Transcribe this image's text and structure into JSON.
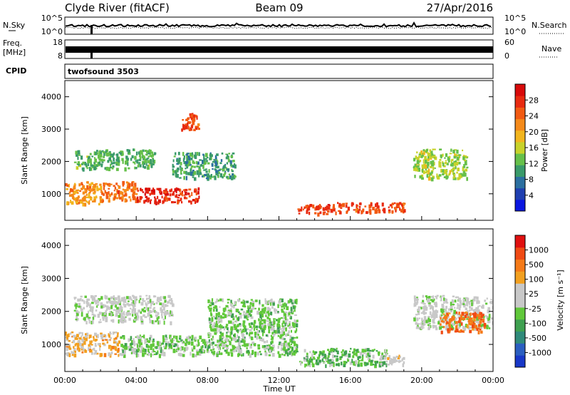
{
  "header": {
    "station": "Clyde River (fitACF)",
    "beam": "Beam 09",
    "date": "27/Apr/2016"
  },
  "top_panels": {
    "nsky_label": "N.Sky",
    "nsky_ticks": [
      "10^5",
      "10^0"
    ],
    "nsearch_label": "N.Search",
    "nsearch_ticks": [
      "10^5",
      "10^0"
    ],
    "freq_label": "Freq.",
    "freq_unit": "[MHz]",
    "freq_ticks": [
      "18",
      "8"
    ],
    "nave_label": "Nave",
    "nave_ticks": [
      "60",
      "0"
    ],
    "cpid_label": "CPID",
    "cpid_value": "twofsound 3503"
  },
  "x_axis": {
    "label": "Time UT",
    "ticks": [
      "00:00",
      "04:00",
      "08:00",
      "12:00",
      "16:00",
      "20:00",
      "00:00"
    ]
  },
  "y_axis": {
    "label": "Slant Range [km]",
    "ticks": [
      "4000",
      "3000",
      "2000",
      "1000"
    ]
  },
  "power_colorbar": {
    "label": "Power [dB]",
    "ticks": [
      "28",
      "24",
      "20",
      "16",
      "12",
      "8",
      "4"
    ],
    "colors": [
      "#0a16e0",
      "#1f3fb0",
      "#2b6fa0",
      "#3a9a6a",
      "#66c04a",
      "#c8d22a",
      "#f2b51e",
      "#f58a1a",
      "#f25a12",
      "#e82a10",
      "#d80a0a"
    ]
  },
  "velocity_colorbar": {
    "label": "Velocity [m s⁻¹]",
    "ticks": [
      "1000",
      "500",
      "100",
      "25",
      "-25",
      "-100",
      "-500",
      "-1000"
    ],
    "colors": [
      "#1838c8",
      "#2a5ec0",
      "#2f8a7a",
      "#3fa050",
      "#60c83a",
      "#c8c8c8",
      "#c8c8c8",
      "#f2a020",
      "#f57a18",
      "#f04a14",
      "#e01010"
    ]
  },
  "chart_data": [
    {
      "type": "heatmap",
      "title": "Power",
      "xlabel": "Time UT",
      "ylabel": "Slant Range [km]",
      "xlim": [
        "00:00",
        "24:00"
      ],
      "ylim": [
        180,
        4500
      ],
      "colorbar_label": "Power [dB]",
      "color_range": [
        0,
        30
      ],
      "regions": [
        {
          "t": [
            0.0,
            2.0
          ],
          "r": [
            700,
            1400
          ],
          "value": 20
        },
        {
          "t": [
            2.0,
            4.0
          ],
          "r": [
            800,
            1400
          ],
          "value": 22
        },
        {
          "t": [
            4.0,
            7.5
          ],
          "r": [
            750,
            1200
          ],
          "value": 26
        },
        {
          "t": [
            13.0,
            15.0
          ],
          "r": [
            400,
            700
          ],
          "value": 25
        },
        {
          "t": [
            15.0,
            19.0
          ],
          "r": [
            450,
            750
          ],
          "value": 24
        },
        {
          "t": [
            6.5,
            7.5
          ],
          "r": [
            3000,
            3500
          ],
          "value": 24
        },
        {
          "t": [
            0.5,
            5.0
          ],
          "r": [
            1800,
            2400
          ],
          "value": 11
        },
        {
          "t": [
            6.0,
            9.5
          ],
          "r": [
            1500,
            2300
          ],
          "value": 10
        },
        {
          "t": [
            19.5,
            22.5
          ],
          "r": [
            1500,
            2400
          ],
          "value": 14
        }
      ]
    },
    {
      "type": "heatmap",
      "title": "Velocity",
      "xlabel": "Time UT",
      "ylabel": "Slant Range [km]",
      "xlim": [
        "00:00",
        "24:00"
      ],
      "ylim": [
        180,
        4500
      ],
      "colorbar_label": "Velocity [m s⁻¹]",
      "color_range": [
        -1000,
        1000
      ],
      "regions": [
        {
          "t": [
            0.0,
            3.0
          ],
          "r": [
            700,
            1400
          ],
          "value": 300
        },
        {
          "t": [
            3.0,
            8.0
          ],
          "r": [
            700,
            1300
          ],
          "value": -150
        },
        {
          "t": [
            0.5,
            6.0
          ],
          "r": [
            1700,
            2500
          ],
          "value": 0
        },
        {
          "t": [
            8.0,
            13.0
          ],
          "r": [
            700,
            2400
          ],
          "value": -150
        },
        {
          "t": [
            13.0,
            18.0
          ],
          "r": [
            400,
            900
          ],
          "value": -200
        },
        {
          "t": [
            17.5,
            19.0
          ],
          "r": [
            400,
            700
          ],
          "value": 120
        },
        {
          "t": [
            19.5,
            24.0
          ],
          "r": [
            1500,
            2500
          ],
          "value": 0
        },
        {
          "t": [
            21.0,
            23.5
          ],
          "r": [
            1400,
            2000
          ],
          "value": 600
        }
      ]
    }
  ]
}
